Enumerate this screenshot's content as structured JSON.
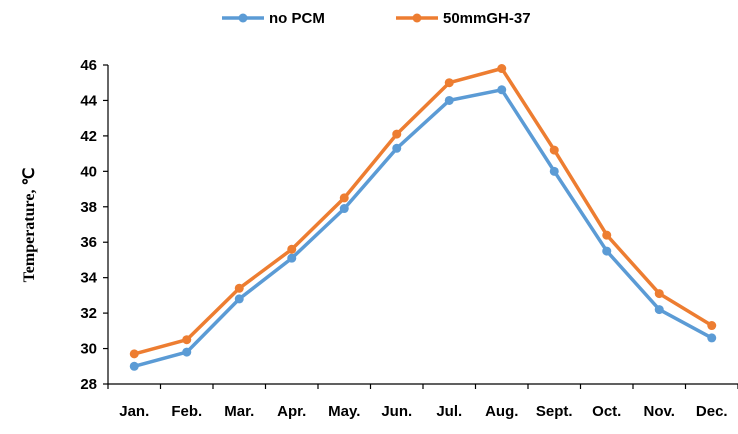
{
  "chart_data": {
    "type": "line",
    "categories": [
      "Jan.",
      "Feb.",
      "Mar.",
      "Apr.",
      "May.",
      "Jun.",
      "Jul.",
      "Aug.",
      "Sept.",
      "Oct.",
      "Nov.",
      "Dec."
    ],
    "series": [
      {
        "name": "no PCM",
        "color": "#5B9BD5",
        "values": [
          29.0,
          29.8,
          32.8,
          35.1,
          37.9,
          41.3,
          44.0,
          44.6,
          40.0,
          35.5,
          32.2,
          30.6
        ]
      },
      {
        "name": "50mmGH-37",
        "color": "#ED7D31",
        "values": [
          29.7,
          30.5,
          33.4,
          35.6,
          38.5,
          42.1,
          45.0,
          45.8,
          41.2,
          36.4,
          33.1,
          31.3
        ]
      }
    ],
    "ylabel": "Temperature,  ℃",
    "xlabel": "",
    "ylim": [
      28,
      46
    ],
    "yticks": [
      28,
      30,
      32,
      34,
      36,
      38,
      40,
      42,
      44,
      46
    ],
    "legend": "top-center",
    "grid": false
  }
}
